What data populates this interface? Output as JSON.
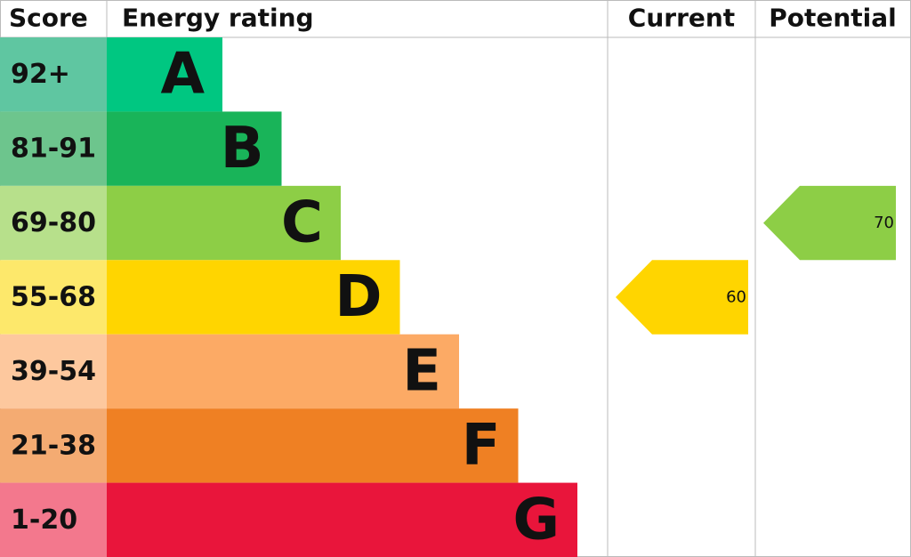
{
  "header": {
    "score": "Score",
    "rating": "Energy rating",
    "current": "Current",
    "potential": "Potential"
  },
  "bands": [
    {
      "score": "92+",
      "letter": "A",
      "color": "#00c781",
      "score_color": "#5fc6a1"
    },
    {
      "score": "81-91",
      "letter": "B",
      "color": "#19b459",
      "score_color": "#6dc58d"
    },
    {
      "score": "69-80",
      "letter": "C",
      "color": "#8dce46",
      "score_color": "#b7e08b"
    },
    {
      "score": "55-68",
      "letter": "D",
      "color": "#ffd500",
      "score_color": "#fde86b"
    },
    {
      "score": "39-54",
      "letter": "E",
      "color": "#fcaa65",
      "score_color": "#fdc89e"
    },
    {
      "score": "21-38",
      "letter": "F",
      "color": "#ef8023",
      "score_color": "#f4ab72"
    },
    {
      "score": "1-20",
      "letter": "G",
      "color": "#e9153b",
      "score_color": "#f3788d"
    }
  ],
  "current": {
    "value": 60
  },
  "potential": {
    "value": 70
  }
}
